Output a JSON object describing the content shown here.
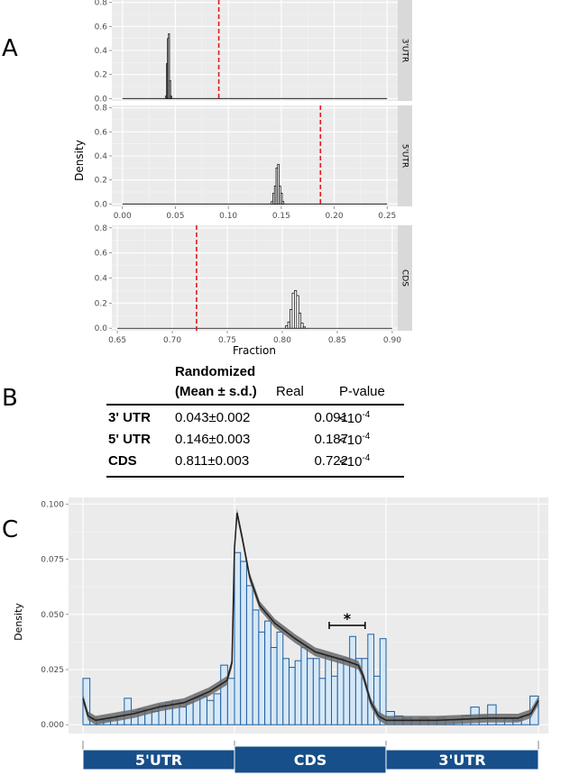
{
  "panel_labels": [
    "A",
    "B",
    "C"
  ],
  "chart_data": [
    {
      "type": "histogram-facets",
      "ylabel": "Density",
      "xlabel": "Fraction",
      "facets": [
        {
          "name": "3'UTR",
          "xlim": [
            -0.01,
            0.26
          ],
          "ylim": [
            -0.02,
            0.82
          ],
          "xticks": [
            0.0,
            0.05,
            0.1,
            0.15,
            0.2,
            0.25
          ],
          "xtick_labels": [
            "0.00",
            "0.05",
            "0.10",
            "0.15",
            "0.20",
            "0.25"
          ],
          "show_xticks": false,
          "yticks": [
            0.0,
            0.2,
            0.4,
            0.6,
            0.8
          ],
          "ytick_labels": [
            "0.0",
            "0.2",
            "0.4",
            "0.6",
            "0.8"
          ],
          "line_range": [
            0.0,
            0.25
          ],
          "real": 0.091,
          "bins": [
            [
              0.0405,
              0.0415,
              0.02
            ],
            [
              0.0415,
              0.0425,
              0.29
            ],
            [
              0.0425,
              0.0435,
              0.5
            ],
            [
              0.0435,
              0.0445,
              0.54
            ],
            [
              0.0445,
              0.0455,
              0.15
            ],
            [
              0.0455,
              0.0465,
              0.02
            ]
          ]
        },
        {
          "name": "5'UTR",
          "xlim": [
            -0.01,
            0.26
          ],
          "ylim": [
            -0.02,
            0.82
          ],
          "xticks": [
            0.0,
            0.05,
            0.1,
            0.15,
            0.2,
            0.25
          ],
          "xtick_labels": [
            "0.00",
            "0.05",
            "0.10",
            "0.15",
            "0.20",
            "0.25"
          ],
          "show_xticks": true,
          "yticks": [
            0.0,
            0.2,
            0.4,
            0.6,
            0.8
          ],
          "ytick_labels": [
            "0.0",
            "0.2",
            "0.4",
            "0.6",
            "0.8"
          ],
          "line_range": [
            0.0,
            0.25
          ],
          "real": 0.187,
          "bins": [
            [
              0.1405,
              0.142,
              0.02
            ],
            [
              0.142,
              0.1435,
              0.09
            ],
            [
              0.1435,
              0.145,
              0.15
            ],
            [
              0.145,
              0.1465,
              0.3
            ],
            [
              0.1465,
              0.148,
              0.33
            ],
            [
              0.148,
              0.1495,
              0.15
            ],
            [
              0.1495,
              0.151,
              0.09
            ],
            [
              0.151,
              0.1525,
              0.02
            ]
          ]
        },
        {
          "name": "CDS",
          "xlim": [
            0.645,
            0.905
          ],
          "ylim": [
            -0.02,
            0.82
          ],
          "xticks": [
            0.65,
            0.7,
            0.75,
            0.8,
            0.85,
            0.9
          ],
          "xtick_labels": [
            "0.65",
            "0.70",
            "0.75",
            "0.80",
            "0.85",
            "0.90"
          ],
          "show_xticks": true,
          "yticks": [
            0.0,
            0.2,
            0.4,
            0.6,
            0.8
          ],
          "ytick_labels": [
            "0.0",
            "0.2",
            "0.4",
            "0.6",
            "0.8"
          ],
          "line_range": [
            0.65,
            0.9
          ],
          "real": 0.722,
          "bins": [
            [
              0.803,
              0.805,
              0.02
            ],
            [
              0.805,
              0.807,
              0.05
            ],
            [
              0.807,
              0.809,
              0.15
            ],
            [
              0.809,
              0.811,
              0.28
            ],
            [
              0.811,
              0.813,
              0.3
            ],
            [
              0.813,
              0.815,
              0.26
            ],
            [
              0.815,
              0.817,
              0.12
            ],
            [
              0.817,
              0.819,
              0.04
            ],
            [
              0.819,
              0.821,
              0.01
            ]
          ]
        }
      ]
    },
    {
      "type": "histogram",
      "ylabel": "Density",
      "xlabel": "",
      "ylim": [
        -0.004,
        0.103
      ],
      "yticks": [
        0.0,
        0.025,
        0.05,
        0.075,
        0.1
      ],
      "ytick_labels": [
        "0.000",
        "0.025",
        "0.050",
        "0.075",
        "0.100"
      ],
      "regions": [
        "5'UTR",
        "CDS",
        "3'UTR"
      ],
      "significance_marker": "*",
      "bar_heights": [
        0.021,
        0.003,
        0.002,
        0.002,
        0.003,
        0.004,
        0.012,
        0.006,
        0.007,
        0.007,
        0.006,
        0.009,
        0.01,
        0.011,
        0.008,
        0.01,
        0.012,
        0.013,
        0.011,
        0.014,
        0.027,
        0.021,
        0.078,
        0.074,
        0.063,
        0.052,
        0.042,
        0.047,
        0.035,
        0.042,
        0.03,
        0.026,
        0.029,
        0.035,
        0.03,
        0.03,
        0.021,
        0.031,
        0.022,
        0.03,
        0.03,
        0.04,
        0.03,
        0.03,
        0.041,
        0.022,
        0.039,
        0.006,
        0.004,
        0.003,
        0.002,
        0.003,
        0.002,
        0.003,
        0.002,
        0.002,
        0.004,
        0.008,
        0.004,
        0.009,
        0.003,
        0.003,
        0.002,
        0.004,
        0.013
      ],
      "density_curve": [
        [
          0.0,
          0.012
        ],
        [
          0.1,
          0.004
        ],
        [
          0.25,
          0.002
        ],
        [
          0.5,
          0.003
        ],
        [
          1.0,
          0.005
        ],
        [
          1.5,
          0.008
        ],
        [
          2.0,
          0.01
        ],
        [
          2.5,
          0.015
        ],
        [
          2.85,
          0.02
        ],
        [
          2.95,
          0.028
        ],
        [
          3.0,
          0.08
        ],
        [
          3.05,
          0.096
        ],
        [
          3.15,
          0.085
        ],
        [
          3.3,
          0.067
        ],
        [
          3.5,
          0.054
        ],
        [
          3.8,
          0.046
        ],
        [
          4.2,
          0.039
        ],
        [
          4.6,
          0.033
        ],
        [
          4.9,
          0.031
        ],
        [
          5.2,
          0.029
        ],
        [
          5.45,
          0.027
        ],
        [
          5.55,
          0.022
        ],
        [
          5.7,
          0.01
        ],
        [
          5.85,
          0.004
        ],
        [
          6.0,
          0.002
        ],
        [
          7.0,
          0.002
        ],
        [
          8.0,
          0.003
        ],
        [
          8.6,
          0.003
        ],
        [
          8.85,
          0.005
        ],
        [
          9.0,
          0.011
        ]
      ],
      "ci_halfwidth": 0.002
    }
  ],
  "table": {
    "headers": {
      "randomized_line1": "Randomized",
      "randomized_line2": "(Mean ± s.d.)",
      "real": "Real",
      "pvalue": "P-value"
    },
    "rows": [
      {
        "label": "3' UTR",
        "randomized": "0.043±0.002",
        "real": "0.091",
        "p_base": "<10",
        "p_exp": "-4"
      },
      {
        "label": "5' UTR",
        "randomized": "0.146±0.003",
        "real": "0.187",
        "p_base": "<10",
        "p_exp": "-4"
      },
      {
        "label": "CDS",
        "randomized": "0.811±0.003",
        "real": "0.722",
        "p_base": "<10",
        "p_exp": "-4"
      }
    ]
  },
  "colors": {
    "panel_bg": "#ebebeb",
    "grid_major": "#ffffff",
    "strip_bg": "#d9d9d9",
    "real_line": "#e31a1c",
    "hist_fill": "#ffffff",
    "bar_fill": "#d6e8f7",
    "bar_stroke": "#1f5f9e",
    "curve": "#222222",
    "ribbon": "#6a6a6a",
    "region_fill": "#174f8a",
    "region_text": "#ffffff"
  }
}
